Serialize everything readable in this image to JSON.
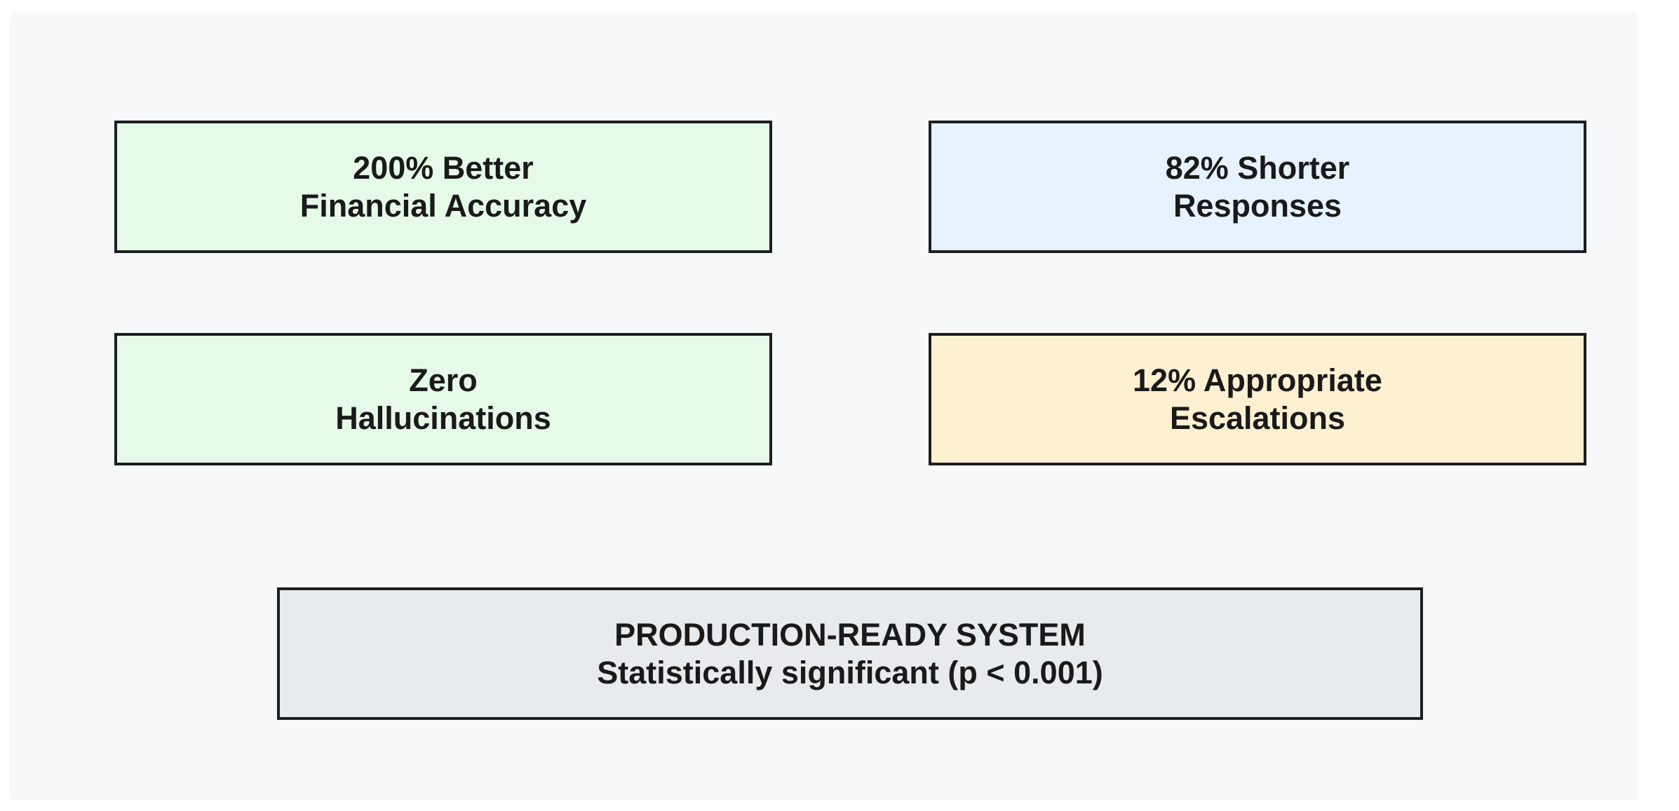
{
  "boxes": [
    {
      "line1": "200% Better",
      "line2": "Financial Accuracy",
      "color": "#e5fbe7"
    },
    {
      "line1": "82% Shorter",
      "line2": "Responses",
      "color": "#e6f2fe"
    },
    {
      "line1": "Zero",
      "line2": "Hallucinations",
      "color": "#e5fbe7"
    },
    {
      "line1": "12% Appropriate",
      "line2": "Escalations",
      "color": "#fdf1d2"
    },
    {
      "line1": "PRODUCTION-READY SYSTEM",
      "line2": "Statistically significant (p < 0.001)",
      "color": "#e8ebee"
    }
  ]
}
